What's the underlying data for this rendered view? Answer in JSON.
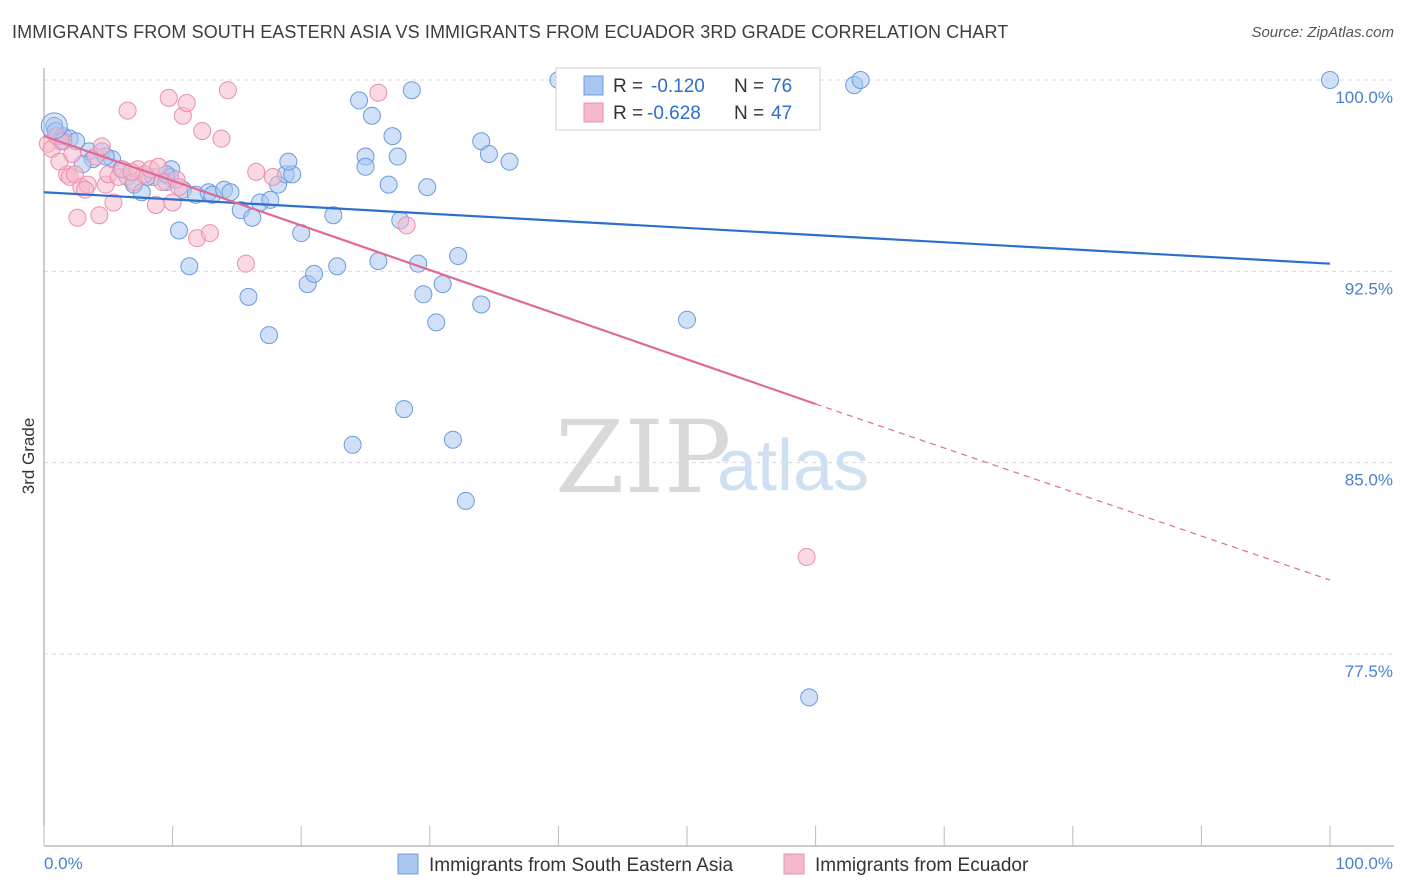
{
  "title": "IMMIGRANTS FROM SOUTH EASTERN ASIA VS IMMIGRANTS FROM ECUADOR 3RD GRADE CORRELATION CHART",
  "source": "Source: ZipAtlas.com",
  "watermark": {
    "zip": "ZIP",
    "atlas": "atlas"
  },
  "colors": {
    "blue_fill": "#a9c6ee",
    "blue_stroke": "#6b9be0",
    "blue_line": "#2f6fcc",
    "pink_fill": "#f5b9cc",
    "pink_stroke": "#ea8fae",
    "pink_line": "#e06a95",
    "tick_text": "#4a7fd0",
    "grid": "#d9d9d9"
  },
  "stats_legend": {
    "row1": {
      "r_label": "R = ",
      "r_value": "-0.120",
      "n_label": "N = ",
      "n_value": "76"
    },
    "row2": {
      "r_label": "R = ",
      "r_value": "-0.628",
      "n_label": "N = ",
      "n_value": "47"
    }
  },
  "chart_data": {
    "type": "scatter",
    "title": "IMMIGRANTS FROM SOUTH EASTERN ASIA VS IMMIGRANTS FROM ECUADOR 3RD GRADE CORRELATION CHART",
    "xlabel": "",
    "ylabel": "3rd Grade",
    "xlim": [
      0,
      100
    ],
    "ylim": [
      71.5,
      101.2
    ],
    "x_tick_labels": [
      "0.0%",
      "100.0%"
    ],
    "y_ticks": [
      100.0,
      92.5,
      85.0,
      77.5
    ],
    "y_tick_labels": [
      "100.0%",
      "92.5%",
      "85.0%",
      "77.5%"
    ],
    "grid": "horizontal dashed",
    "legend_position": "bottom-center",
    "series": [
      {
        "name": "Immigrants from South Eastern Asia",
        "color": "#a9c6ee",
        "trend": {
          "x": [
            0,
            100
          ],
          "y": [
            95.6,
            92.8
          ],
          "style": "solid"
        },
        "points": [
          [
            0.8,
            98.2
          ],
          [
            0.9,
            98.0
          ],
          [
            1.5,
            97.8
          ],
          [
            2.0,
            97.7
          ],
          [
            3.5,
            97.2
          ],
          [
            4.5,
            97.2
          ],
          [
            3.8,
            96.9
          ],
          [
            5.3,
            96.9
          ],
          [
            6.0,
            96.5
          ],
          [
            6.5,
            96.2
          ],
          [
            7.0,
            95.9
          ],
          [
            7.6,
            95.6
          ],
          [
            8.5,
            96.2
          ],
          [
            9.8,
            96.2
          ],
          [
            9.5,
            96.0
          ],
          [
            9.9,
            96.5
          ],
          [
            10.8,
            95.7
          ],
          [
            11.8,
            95.5
          ],
          [
            12.8,
            95.6
          ],
          [
            13.1,
            95.5
          ],
          [
            14.0,
            95.7
          ],
          [
            14.5,
            95.6
          ],
          [
            15.3,
            94.9
          ],
          [
            16.2,
            94.6
          ],
          [
            16.8,
            95.2
          ],
          [
            17.6,
            95.3
          ],
          [
            18.2,
            95.9
          ],
          [
            18.8,
            96.3
          ],
          [
            19.3,
            96.3
          ],
          [
            19.0,
            96.8
          ],
          [
            9.5,
            96.3
          ],
          [
            10.5,
            94.1
          ],
          [
            11.3,
            92.7
          ],
          [
            15.9,
            91.5
          ],
          [
            17.5,
            90.0
          ],
          [
            20.0,
            94.0
          ],
          [
            20.5,
            92.0
          ],
          [
            21.0,
            92.4
          ],
          [
            22.5,
            94.7
          ],
          [
            22.8,
            92.7
          ],
          [
            24.5,
            99.2
          ],
          [
            24.0,
            85.7
          ],
          [
            25.0,
            97.0
          ],
          [
            25.0,
            96.6
          ],
          [
            25.5,
            98.6
          ],
          [
            26.0,
            92.9
          ],
          [
            26.8,
            95.9
          ],
          [
            27.1,
            97.8
          ],
          [
            27.5,
            97.0
          ],
          [
            27.7,
            94.5
          ],
          [
            28.0,
            87.1
          ],
          [
            28.6,
            99.6
          ],
          [
            29.1,
            92.8
          ],
          [
            29.5,
            91.6
          ],
          [
            29.8,
            95.8
          ],
          [
            30.5,
            90.5
          ],
          [
            31.0,
            92.0
          ],
          [
            32.2,
            93.1
          ],
          [
            31.8,
            85.9
          ],
          [
            32.8,
            83.5
          ],
          [
            34.0,
            97.6
          ],
          [
            34.0,
            91.2
          ],
          [
            34.6,
            97.1
          ],
          [
            36.2,
            96.8
          ],
          [
            40.0,
            100.0
          ],
          [
            50.0,
            90.6
          ],
          [
            59.0,
            100.0
          ],
          [
            63.0,
            99.8
          ],
          [
            63.5,
            100.0
          ],
          [
            100.0,
            100.0
          ],
          [
            59.5,
            75.8
          ],
          [
            3.0,
            96.7
          ],
          [
            4.8,
            97.0
          ],
          [
            2.5,
            97.6
          ],
          [
            1.3,
            97.6
          ],
          [
            8.0,
            96.2
          ]
        ]
      },
      {
        "name": "Immigrants from Ecuador",
        "color": "#f5b9cc",
        "trend": {
          "x": [
            0,
            60
          ],
          "y": [
            97.8,
            87.3
          ],
          "style": "solid",
          "extended": {
            "x": [
              60,
              100
            ],
            "y": [
              87.3,
              80.4
            ],
            "style": "dashed"
          }
        },
        "points": [
          [
            0.3,
            97.5
          ],
          [
            0.6,
            97.3
          ],
          [
            1.0,
            97.8
          ],
          [
            1.5,
            97.6
          ],
          [
            1.8,
            96.3
          ],
          [
            2.0,
            96.2
          ],
          [
            2.4,
            96.3
          ],
          [
            2.6,
            94.6
          ],
          [
            2.9,
            95.8
          ],
          [
            3.4,
            95.9
          ],
          [
            4.0,
            97.0
          ],
          [
            4.3,
            94.7
          ],
          [
            4.8,
            95.9
          ],
          [
            5.0,
            96.3
          ],
          [
            5.4,
            95.2
          ],
          [
            5.8,
            96.2
          ],
          [
            6.1,
            96.5
          ],
          [
            6.5,
            98.8
          ],
          [
            7.0,
            96.0
          ],
          [
            7.3,
            96.5
          ],
          [
            7.8,
            96.3
          ],
          [
            8.3,
            96.5
          ],
          [
            8.7,
            95.1
          ],
          [
            9.2,
            96.0
          ],
          [
            9.7,
            99.3
          ],
          [
            10.0,
            95.2
          ],
          [
            10.3,
            96.1
          ],
          [
            10.5,
            95.8
          ],
          [
            10.8,
            98.6
          ],
          [
            11.1,
            99.1
          ],
          [
            11.9,
            93.8
          ],
          [
            12.3,
            98.0
          ],
          [
            12.9,
            94.0
          ],
          [
            13.8,
            97.7
          ],
          [
            14.3,
            99.6
          ],
          [
            15.7,
            92.8
          ],
          [
            16.5,
            96.4
          ],
          [
            17.8,
            96.2
          ],
          [
            26.0,
            99.5
          ],
          [
            28.2,
            94.3
          ],
          [
            59.3,
            81.3
          ],
          [
            1.2,
            96.8
          ],
          [
            2.2,
            97.1
          ],
          [
            4.5,
            97.4
          ],
          [
            6.8,
            96.4
          ],
          [
            8.9,
            96.6
          ],
          [
            3.2,
            95.7
          ]
        ]
      }
    ]
  }
}
